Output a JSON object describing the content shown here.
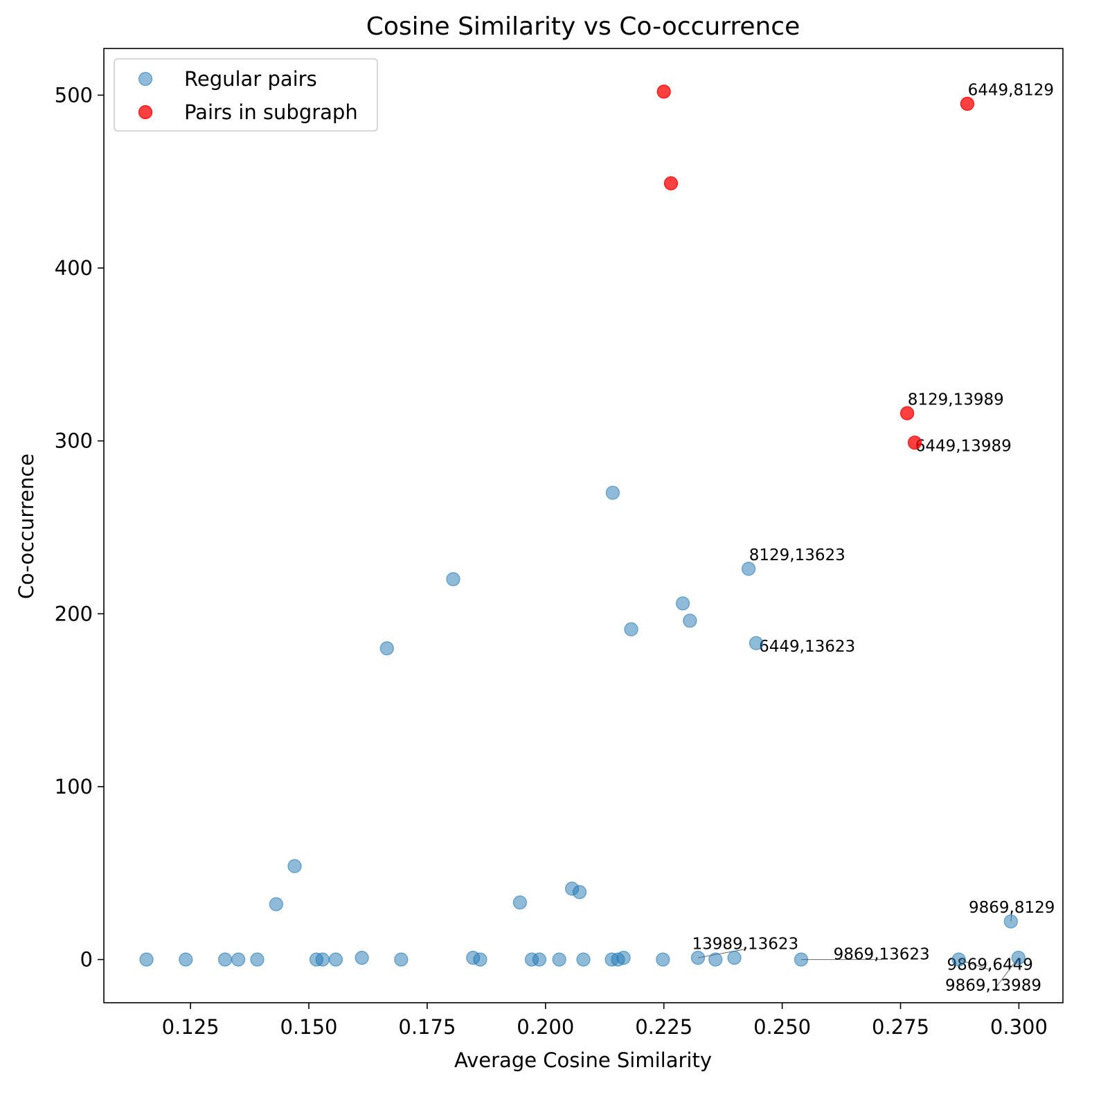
{
  "chart_data": {
    "type": "scatter",
    "title": "Cosine Similarity vs Co-occurrence",
    "xlabel": "Average Cosine Similarity",
    "ylabel": "Co-occurrence",
    "xlim": [
      0.1067,
      0.3093
    ],
    "ylim": [
      -25,
      527
    ],
    "xticks": [
      0.125,
      0.15,
      0.175,
      0.2,
      0.225,
      0.25,
      0.275,
      0.3
    ],
    "xtick_labels": [
      "0.125",
      "0.150",
      "0.175",
      "0.200",
      "0.225",
      "0.250",
      "0.275",
      "0.300"
    ],
    "yticks": [
      0,
      100,
      200,
      300,
      400,
      500
    ],
    "ytick_labels": [
      "0",
      "100",
      "200",
      "300",
      "400",
      "500"
    ],
    "grid": false,
    "legend_position": "top-left",
    "series": [
      {
        "name": "Regular pairs",
        "color": "#1f77b4",
        "alpha": 0.5,
        "points": [
          {
            "x": 0.2142,
            "y": 270
          },
          {
            "x": 0.1805,
            "y": 220
          },
          {
            "x": 0.2429,
            "y": 226
          },
          {
            "x": 0.229,
            "y": 206
          },
          {
            "x": 0.2305,
            "y": 196
          },
          {
            "x": 0.2181,
            "y": 191
          },
          {
            "x": 0.2445,
            "y": 183
          },
          {
            "x": 0.1665,
            "y": 180
          },
          {
            "x": 0.147,
            "y": 54
          },
          {
            "x": 0.1431,
            "y": 32
          },
          {
            "x": 0.2056,
            "y": 41
          },
          {
            "x": 0.2072,
            "y": 39
          },
          {
            "x": 0.1946,
            "y": 33
          },
          {
            "x": 0.2983,
            "y": 22
          },
          {
            "x": 0.1157,
            "y": 0
          },
          {
            "x": 0.124,
            "y": 0
          },
          {
            "x": 0.1323,
            "y": 0
          },
          {
            "x": 0.1351,
            "y": 0
          },
          {
            "x": 0.1391,
            "y": 0
          },
          {
            "x": 0.1516,
            "y": 0
          },
          {
            "x": 0.1529,
            "y": 0
          },
          {
            "x": 0.1557,
            "y": 0
          },
          {
            "x": 0.1612,
            "y": 1
          },
          {
            "x": 0.1695,
            "y": 0
          },
          {
            "x": 0.1847,
            "y": 1
          },
          {
            "x": 0.1862,
            "y": 0
          },
          {
            "x": 0.1971,
            "y": 0
          },
          {
            "x": 0.1987,
            "y": 0
          },
          {
            "x": 0.2029,
            "y": 0
          },
          {
            "x": 0.208,
            "y": 0
          },
          {
            "x": 0.214,
            "y": 0
          },
          {
            "x": 0.2153,
            "y": 0
          },
          {
            "x": 0.2165,
            "y": 1
          },
          {
            "x": 0.2248,
            "y": 0
          },
          {
            "x": 0.2322,
            "y": 1
          },
          {
            "x": 0.2359,
            "y": 0
          },
          {
            "x": 0.2399,
            "y": 1
          },
          {
            "x": 0.254,
            "y": 0
          },
          {
            "x": 0.2873,
            "y": 0
          },
          {
            "x": 0.2999,
            "y": 1
          }
        ]
      },
      {
        "name": "Pairs in subgraph",
        "color": "#ff0000",
        "alpha": 0.75,
        "points": [
          {
            "x": 0.225,
            "y": 502
          },
          {
            "x": 0.2891,
            "y": 495
          },
          {
            "x": 0.2265,
            "y": 449
          },
          {
            "x": 0.2764,
            "y": 316
          },
          {
            "x": 0.278,
            "y": 299
          }
        ]
      }
    ],
    "annotations": [
      {
        "text": "6449,8129",
        "x": 0.2891,
        "y": 495,
        "label_x": 0.2892,
        "label_y": 500,
        "anchor": "start",
        "leader": false
      },
      {
        "text": "8129,13989",
        "x": 0.2764,
        "y": 316,
        "label_x": 0.2765,
        "label_y": 321,
        "anchor": "start",
        "leader": false
      },
      {
        "text": "6449,13989",
        "x": 0.278,
        "y": 299,
        "label_x": 0.2781,
        "label_y": 294,
        "anchor": "start",
        "leader": false
      },
      {
        "text": "8129,13623",
        "x": 0.2429,
        "y": 226,
        "label_x": 0.243,
        "label_y": 231,
        "anchor": "start",
        "leader": false
      },
      {
        "text": "6449,13623",
        "x": 0.2445,
        "y": 183,
        "label_x": 0.2451,
        "label_y": 178,
        "anchor": "start",
        "leader": false
      },
      {
        "text": "9869,8129",
        "x": 0.2983,
        "y": 22,
        "label_x": 0.2985,
        "label_y": 27,
        "anchor": "middle",
        "leader": true
      },
      {
        "text": "13989,13623",
        "x": 0.2322,
        "y": 1,
        "label_x": 0.2422,
        "label_y": 6,
        "anchor": "middle",
        "leader": true
      },
      {
        "text": "9869,13623",
        "x": 0.254,
        "y": 0,
        "label_x": 0.271,
        "label_y": 0,
        "anchor": "middle",
        "leader": true
      },
      {
        "text": "9869,6449",
        "x": 0.2873,
        "y": 0,
        "label_x": 0.2939,
        "label_y": -6,
        "anchor": "middle",
        "leader": true
      },
      {
        "text": "9869,13989",
        "x": 0.2999,
        "y": 1,
        "label_x": 0.2946,
        "label_y": -18,
        "anchor": "middle",
        "leader": true
      }
    ]
  }
}
